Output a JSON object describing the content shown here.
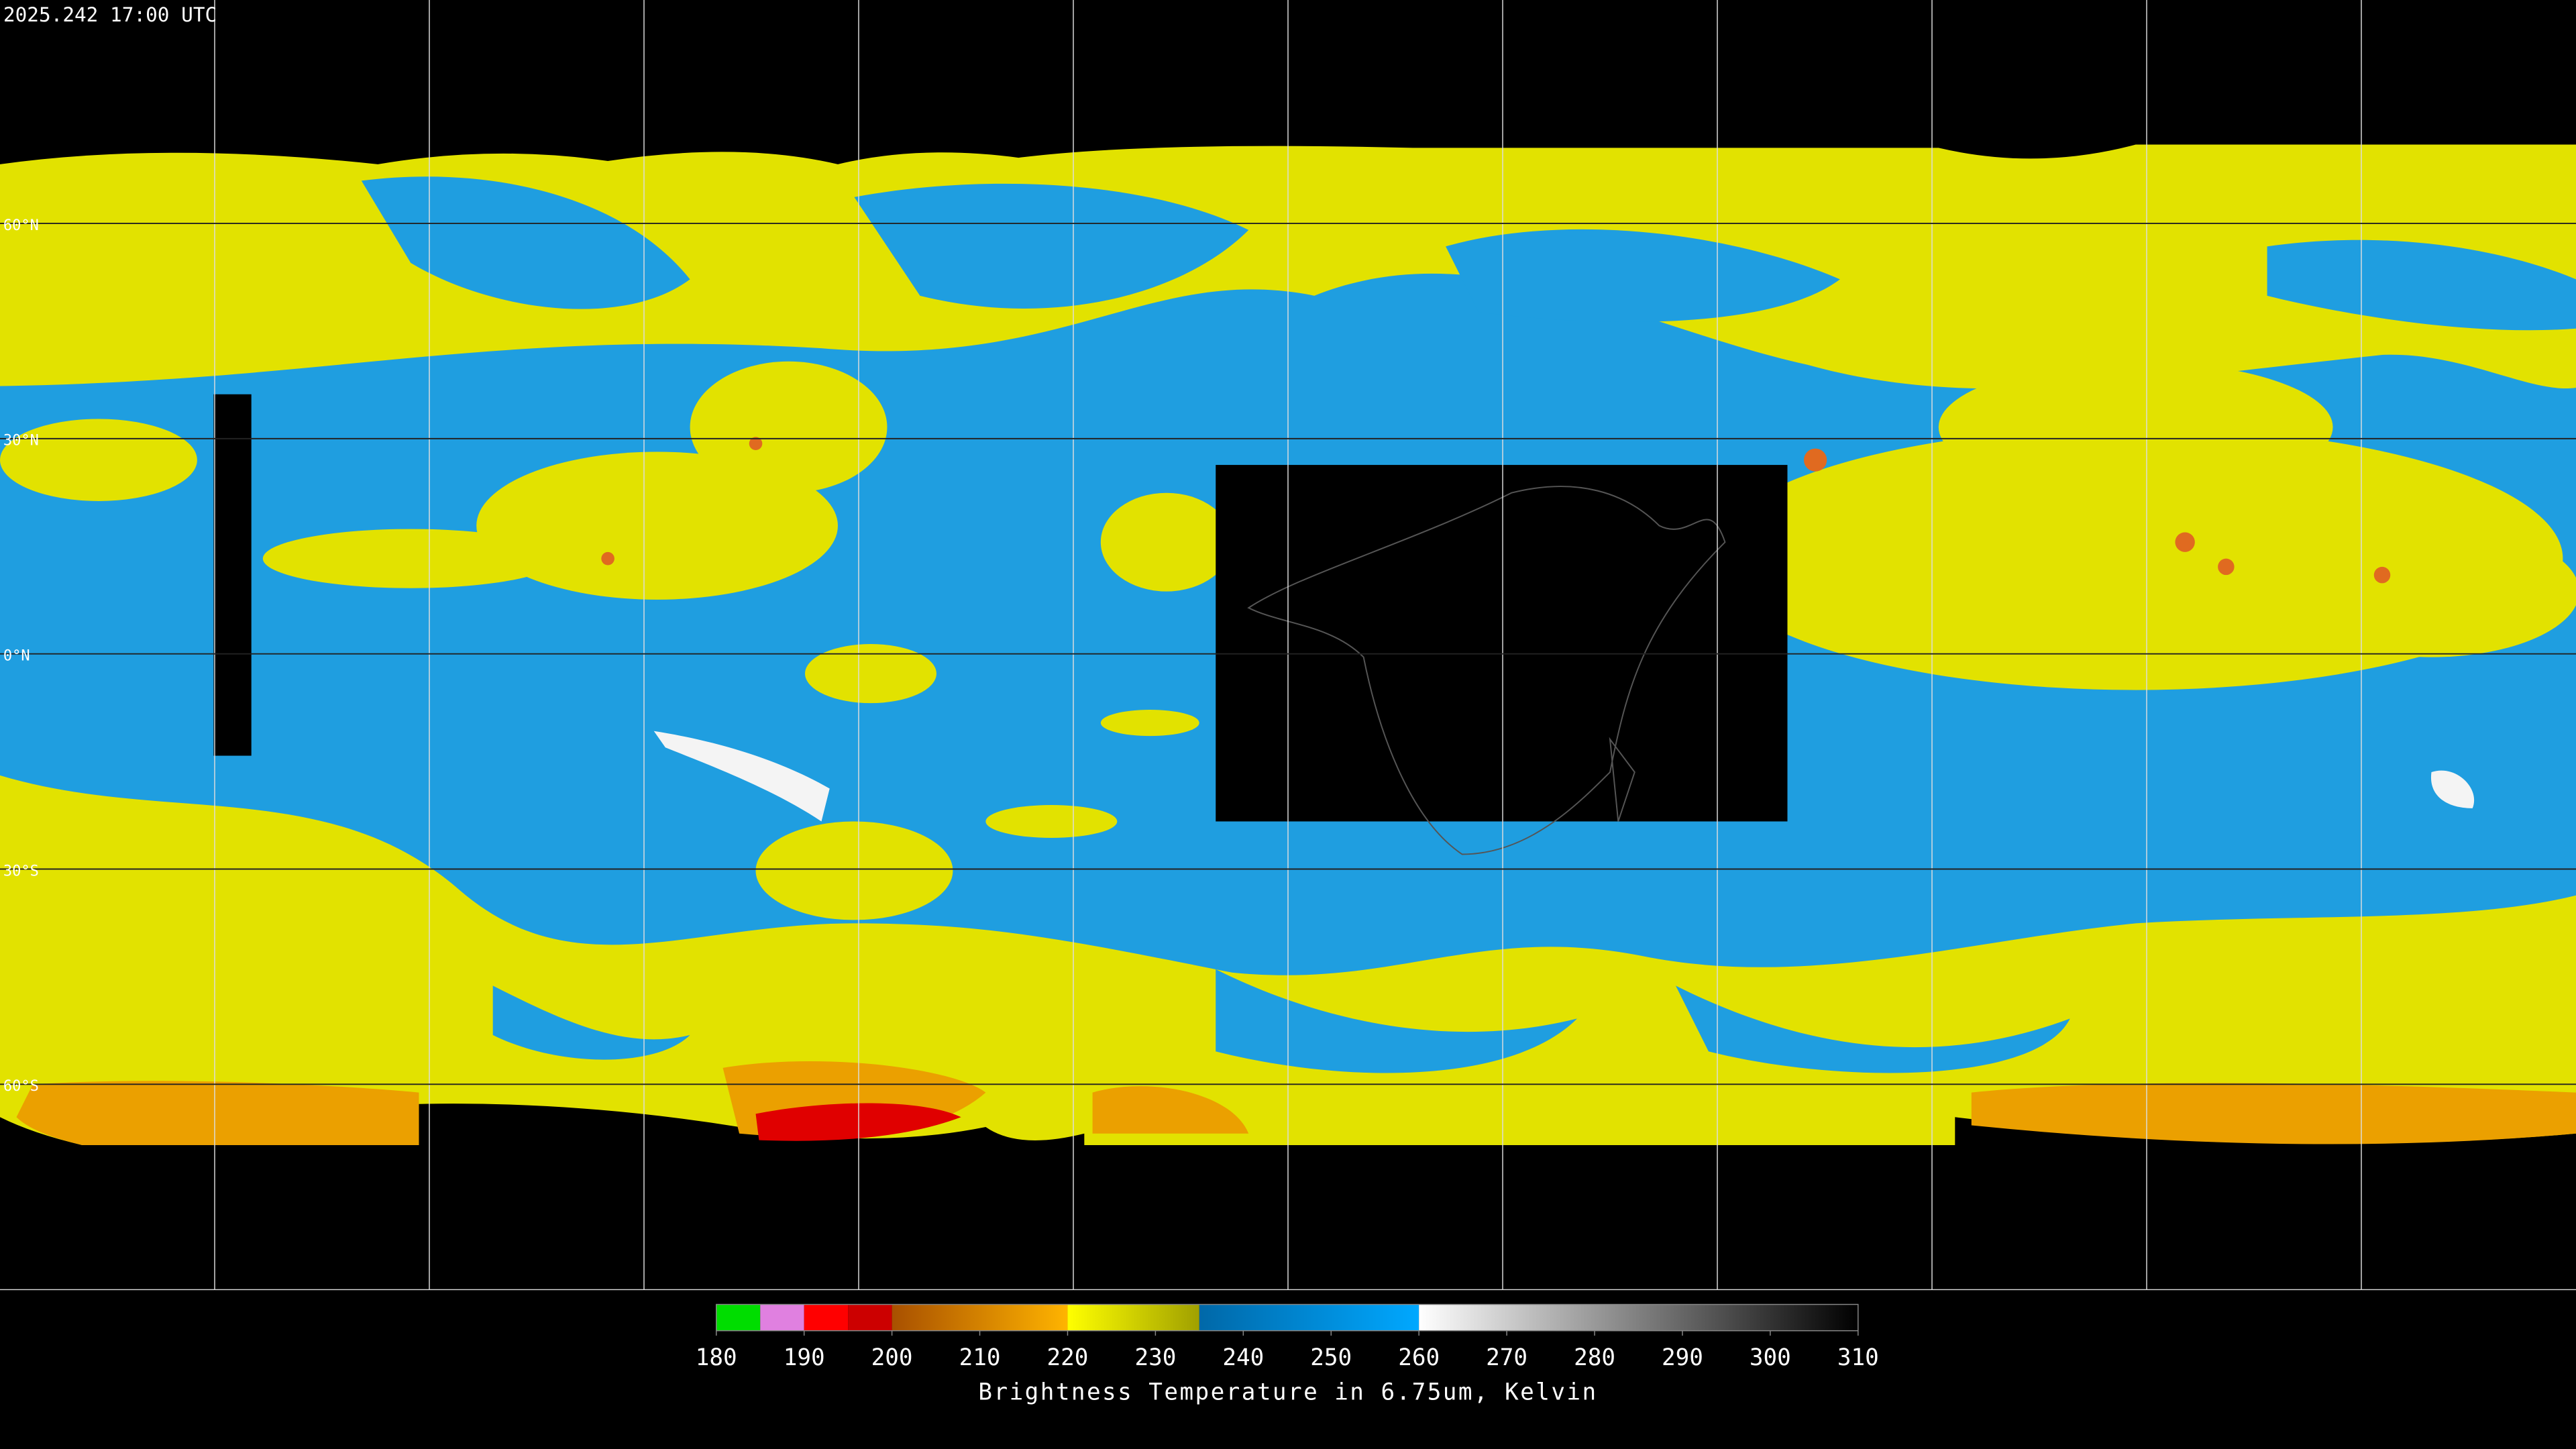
{
  "timestamp": "2025.242 17:00 UTC",
  "latitude_labels": [
    "60°N",
    "30°N",
    "0°N",
    "30°S",
    "60°S"
  ],
  "colorbar": {
    "label": "Brightness Temperature in 6.75um, Kelvin",
    "range": [
      180,
      310
    ],
    "ticks": [
      180,
      190,
      200,
      210,
      220,
      230,
      240,
      250,
      260,
      270,
      280,
      290,
      300,
      310
    ],
    "segments": [
      {
        "from": 180,
        "to": 185,
        "colors": [
          "#00dd00",
          "#00dd00"
        ]
      },
      {
        "from": 185,
        "to": 190,
        "colors": [
          "#e080e0",
          "#e080e0"
        ]
      },
      {
        "from": 190,
        "to": 195,
        "colors": [
          "#ff0000",
          "#ff0000"
        ]
      },
      {
        "from": 195,
        "to": 200,
        "colors": [
          "#cc0000",
          "#cc0000"
        ]
      },
      {
        "from": 200,
        "to": 220,
        "colors": [
          "#a85000",
          "#ffb400"
        ]
      },
      {
        "from": 220,
        "to": 235,
        "colors": [
          "#ffff00",
          "#a0a000"
        ]
      },
      {
        "from": 235,
        "to": 260,
        "colors": [
          "#0068a8",
          "#00a8ff"
        ]
      },
      {
        "from": 260,
        "to": 310,
        "colors": [
          "#ffffff",
          "#000000"
        ]
      }
    ]
  }
}
